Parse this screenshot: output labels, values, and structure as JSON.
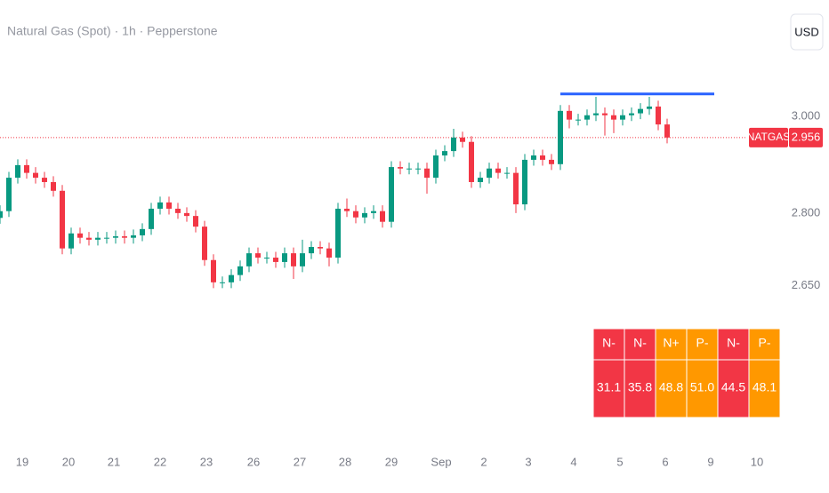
{
  "chart_data": {
    "type": "candlestick",
    "title": "Natural Gas (Spot) · 1h · Pepperstone",
    "currency_button": "USD",
    "x": [
      0,
      1,
      2,
      3,
      4,
      5,
      6,
      7,
      8,
      9,
      10,
      11,
      12,
      13,
      14,
      15,
      16,
      17,
      18,
      19,
      20,
      21,
      22,
      23,
      24,
      25,
      26,
      27,
      28,
      29,
      30,
      31,
      32,
      33,
      34,
      35,
      36,
      37,
      38,
      39,
      40,
      41,
      42,
      43,
      44,
      45,
      46,
      47,
      48,
      49,
      50,
      51,
      52,
      53,
      54,
      55,
      56,
      57,
      58,
      59,
      60,
      61,
      62,
      63,
      64,
      65,
      66,
      67,
      68,
      69,
      70,
      71,
      72,
      73,
      74,
      75
    ],
    "open": [
      2.79,
      2.804,
      2.873,
      2.899,
      2.883,
      2.873,
      2.864,
      2.846,
      2.727,
      2.758,
      2.749,
      2.745,
      2.749,
      2.749,
      2.752,
      2.749,
      2.754,
      2.767,
      2.809,
      2.822,
      2.809,
      2.8,
      2.794,
      2.772,
      2.703,
      2.657,
      2.657,
      2.672,
      2.69,
      2.717,
      2.708,
      2.708,
      2.699,
      2.717,
      2.69,
      2.717,
      2.73,
      2.727,
      2.708,
      2.809,
      2.804,
      2.791,
      2.8,
      2.804,
      2.782,
      2.895,
      2.892,
      2.892,
      2.892,
      2.873,
      2.919,
      2.928,
      2.956,
      2.947,
      2.864,
      2.873,
      2.892,
      2.883,
      2.883,
      2.818,
      2.91,
      2.919,
      2.91,
      2.901,
      3.011,
      2.993,
      2.993,
      3.002,
      3.006,
      3.002,
      2.993,
      3.002,
      3.006,
      3.015,
      3.02,
      2.983
    ],
    "high": [
      2.816,
      2.885,
      2.911,
      2.911,
      2.895,
      2.885,
      2.876,
      2.858,
      2.77,
      2.77,
      2.761,
      2.761,
      2.761,
      2.764,
      2.764,
      2.766,
      2.779,
      2.821,
      2.834,
      2.834,
      2.821,
      2.812,
      2.806,
      2.784,
      2.715,
      2.669,
      2.684,
      2.702,
      2.729,
      2.729,
      2.72,
      2.72,
      2.729,
      2.729,
      2.745,
      2.742,
      2.742,
      2.739,
      2.821,
      2.83,
      2.816,
      2.812,
      2.816,
      2.816,
      2.907,
      2.907,
      2.904,
      2.904,
      2.904,
      2.931,
      2.94,
      2.974,
      2.968,
      2.959,
      2.885,
      2.904,
      2.904,
      2.895,
      2.895,
      2.922,
      2.931,
      2.931,
      2.922,
      3.023,
      3.023,
      3.005,
      3.014,
      3.04,
      3.018,
      3.014,
      3.014,
      3.018,
      3.027,
      3.04,
      3.032,
      2.995
    ],
    "low": [
      2.778,
      2.792,
      2.861,
      2.871,
      2.861,
      2.852,
      2.834,
      2.715,
      2.715,
      2.737,
      2.733,
      2.733,
      2.737,
      2.737,
      2.737,
      2.737,
      2.742,
      2.755,
      2.797,
      2.797,
      2.788,
      2.782,
      2.76,
      2.691,
      2.645,
      2.645,
      2.645,
      2.66,
      2.678,
      2.696,
      2.696,
      2.687,
      2.687,
      2.664,
      2.678,
      2.705,
      2.715,
      2.69,
      2.696,
      2.792,
      2.779,
      2.779,
      2.788,
      2.77,
      2.77,
      2.88,
      2.88,
      2.88,
      2.84,
      2.861,
      2.907,
      2.916,
      2.935,
      2.852,
      2.852,
      2.861,
      2.871,
      2.871,
      2.8,
      2.806,
      2.898,
      2.898,
      2.889,
      2.889,
      2.975,
      2.981,
      2.981,
      2.99,
      2.96,
      2.965,
      2.981,
      2.99,
      2.994,
      3.003,
      2.971,
      2.944
    ],
    "close": [
      2.804,
      2.873,
      2.899,
      2.883,
      2.873,
      2.864,
      2.846,
      2.727,
      2.758,
      2.749,
      2.745,
      2.749,
      2.749,
      2.752,
      2.749,
      2.754,
      2.767,
      2.809,
      2.822,
      2.809,
      2.8,
      2.794,
      2.772,
      2.703,
      2.657,
      2.657,
      2.672,
      2.69,
      2.717,
      2.708,
      2.708,
      2.699,
      2.717,
      2.69,
      2.717,
      2.73,
      2.727,
      2.708,
      2.809,
      2.804,
      2.791,
      2.8,
      2.804,
      2.782,
      2.895,
      2.892,
      2.892,
      2.892,
      2.873,
      2.919,
      2.928,
      2.956,
      2.947,
      2.864,
      2.873,
      2.892,
      2.883,
      2.883,
      2.818,
      2.91,
      2.919,
      2.91,
      2.901,
      3.011,
      2.993,
      2.993,
      3.002,
      3.006,
      3.002,
      2.993,
      3.002,
      3.006,
      3.015,
      3.02,
      2.983,
      2.956
    ],
    "up_color": "#089981",
    "down_color": "#f23645",
    "xlim": [
      0,
      87
    ],
    "xticks": [
      {
        "value": 2.5,
        "label": "19"
      },
      {
        "value": 7.7,
        "label": "20"
      },
      {
        "value": 12.8,
        "label": "21"
      },
      {
        "value": 18.0,
        "label": "22"
      },
      {
        "value": 23.2,
        "label": "23"
      },
      {
        "value": 28.5,
        "label": "26"
      },
      {
        "value": 33.7,
        "label": "27"
      },
      {
        "value": 38.8,
        "label": "28"
      },
      {
        "value": 44.0,
        "label": "29"
      },
      {
        "value": 49.6,
        "label": "Sep"
      },
      {
        "value": 54.4,
        "label": "2"
      },
      {
        "value": 59.4,
        "label": "3"
      },
      {
        "value": 64.5,
        "label": "4"
      },
      {
        "value": 69.7,
        "label": "5"
      },
      {
        "value": 74.8,
        "label": "6"
      },
      {
        "value": 79.9,
        "label": "9"
      },
      {
        "value": 85.1,
        "label": "10"
      }
    ],
    "ylim": [
      2.332,
      3.24
    ],
    "yticks": [
      {
        "value": 3,
        "label": "3.000"
      },
      {
        "value": 2.8,
        "label": "2.800"
      },
      {
        "value": 2.65,
        "label": "2.650"
      }
    ],
    "level": {
      "value": 3.046,
      "x": [
        63,
        80.3
      ],
      "color": "#2962ff"
    },
    "last_price": {
      "name": "NATGAS",
      "value": 2.956,
      "color": "#f23645"
    },
    "table": {
      "headers": [
        "N-",
        "N-",
        "N+",
        "P-",
        "N-",
        "P-"
      ],
      "cells": [
        "31.1",
        "35.8",
        "48.8",
        "51.0",
        "44.5",
        "48.1"
      ],
      "colors": [
        "#f23645",
        "#f23645",
        "#ff9800",
        "#ff9800",
        "#f23645",
        "#ff9800"
      ]
    }
  }
}
